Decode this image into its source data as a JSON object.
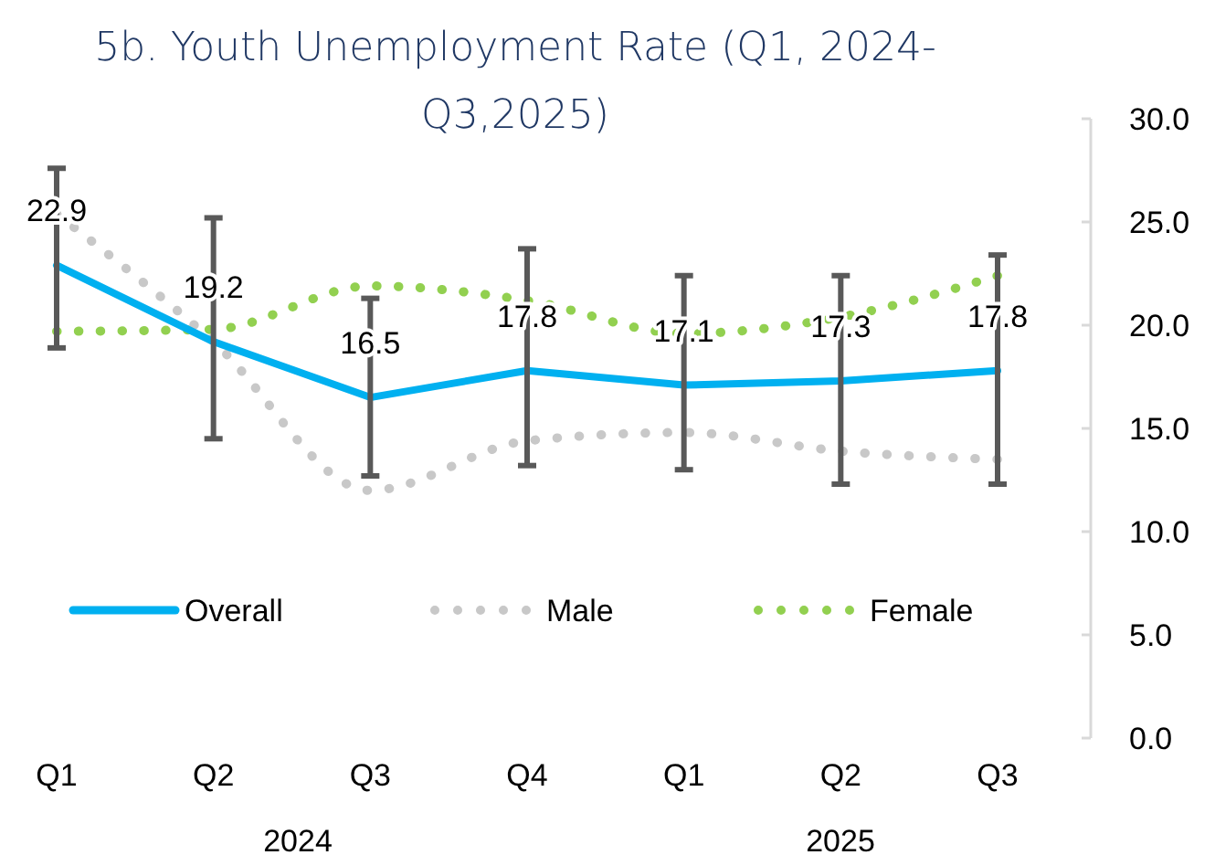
{
  "chart_data": {
    "type": "line",
    "title": "5b. Youth Unemployment Rate (Q1, 2024-Q3,2025)",
    "categories": [
      "Q1",
      "Q2",
      "Q3",
      "Q4",
      "Q1",
      "Q2",
      "Q3"
    ],
    "series": [
      {
        "name": "Overall",
        "color": "#00b0f0",
        "line_style": "solid",
        "values": [
          22.9,
          19.2,
          16.5,
          17.8,
          17.1,
          17.3,
          17.8
        ],
        "value_labels": [
          "22.9",
          "19.2",
          "16.5",
          "17.8",
          "17.1",
          "17.3",
          "17.8"
        ],
        "errors": [
          [
            18.9,
            27.6
          ],
          [
            14.5,
            25.2
          ],
          [
            12.7,
            21.3
          ],
          [
            13.2,
            23.7
          ],
          [
            13.0,
            22.4
          ],
          [
            12.3,
            22.4
          ],
          [
            12.3,
            23.4
          ]
        ]
      },
      {
        "name": "Male",
        "color": "#c8c8c8",
        "line_style": "dotted",
        "values": [
          25.4,
          19.2,
          12.0,
          14.4,
          14.8,
          13.9,
          13.5
        ]
      },
      {
        "name": "Female",
        "color": "#92d050",
        "line_style": "dotted",
        "values": [
          19.7,
          19.8,
          21.9,
          21.2,
          19.6,
          20.4,
          22.4
        ]
      }
    ],
    "ylim": [
      0,
      30
    ],
    "yticks": [
      {
        "value": 0,
        "label": "0.0"
      },
      {
        "value": 5,
        "label": "5.0"
      },
      {
        "value": 10,
        "label": "10.0"
      },
      {
        "value": 15,
        "label": "15.0"
      },
      {
        "value": 20,
        "label": "20.0"
      },
      {
        "value": 25,
        "label": "25.0"
      },
      {
        "value": 30,
        "label": "30.0"
      }
    ],
    "annotations": [
      "2024",
      "2025"
    ],
    "legend": "bottom",
    "grid": false
  }
}
